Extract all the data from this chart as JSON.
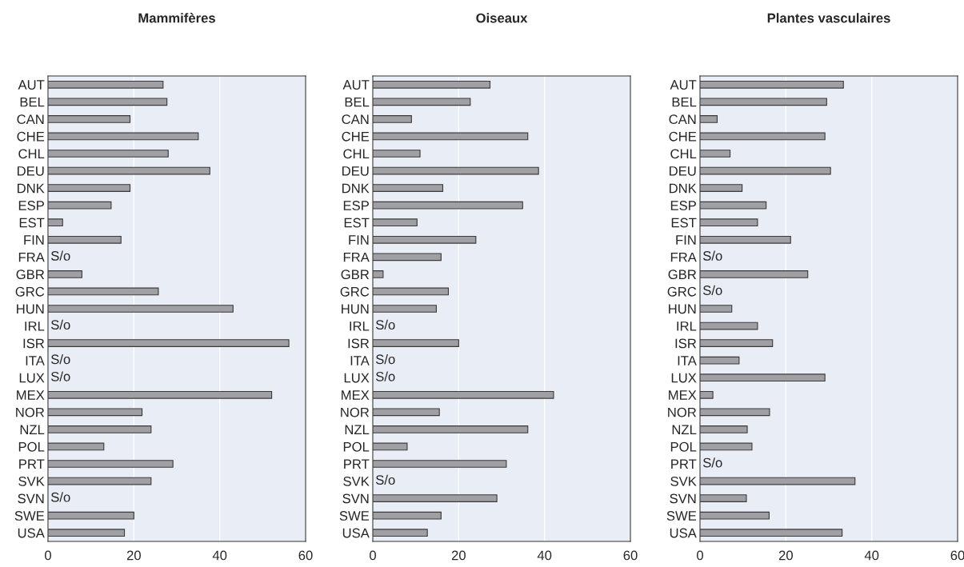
{
  "chart_data": [
    {
      "type": "bar",
      "orientation": "horizontal",
      "title": "Mammifères",
      "categories": [
        "AUT",
        "BEL",
        "CAN",
        "CHE",
        "CHL",
        "DEU",
        "DNK",
        "ESP",
        "EST",
        "FIN",
        "FRA",
        "GBR",
        "GRC",
        "HUN",
        "IRL",
        "ISR",
        "ITA",
        "LUX",
        "MEX",
        "NOR",
        "NZL",
        "POL",
        "PRT",
        "SVK",
        "SVN",
        "SWE",
        "USA"
      ],
      "values": [
        26.8,
        27.7,
        19.1,
        35.0,
        28.0,
        37.7,
        19.1,
        14.7,
        3.4,
        17.0,
        null,
        7.9,
        25.7,
        43.1,
        null,
        56.1,
        null,
        null,
        52.1,
        21.9,
        24.0,
        13.0,
        29.1,
        24.0,
        null,
        20.0,
        17.8
      ],
      "value_labels": [
        null,
        null,
        null,
        null,
        null,
        null,
        null,
        null,
        null,
        null,
        "S/o",
        null,
        null,
        null,
        "S/o",
        null,
        "S/o",
        "S/o",
        null,
        null,
        null,
        null,
        null,
        null,
        "S/o",
        null,
        null
      ],
      "color": "#a0a0a4",
      "xlim": [
        0,
        60
      ],
      "xticks": [
        0,
        20,
        40,
        60
      ],
      "grid": "x"
    },
    {
      "type": "bar",
      "orientation": "horizontal",
      "title": "Oiseaux",
      "categories": [
        "AUT",
        "BEL",
        "CAN",
        "CHE",
        "CHL",
        "DEU",
        "DNK",
        "ESP",
        "EST",
        "FIN",
        "FRA",
        "GBR",
        "GRC",
        "HUN",
        "IRL",
        "ISR",
        "ITA",
        "LUX",
        "MEX",
        "NOR",
        "NZL",
        "POL",
        "PRT",
        "SVK",
        "SVN",
        "SWE",
        "USA"
      ],
      "values": [
        27.3,
        22.7,
        9.0,
        36.1,
        11.0,
        38.6,
        16.3,
        34.9,
        10.3,
        24.0,
        15.9,
        2.4,
        17.6,
        14.8,
        null,
        20.0,
        null,
        null,
        42.1,
        15.5,
        36.1,
        8.0,
        31.1,
        null,
        28.9,
        15.9,
        12.7
      ],
      "value_labels": [
        null,
        null,
        null,
        null,
        null,
        null,
        null,
        null,
        null,
        null,
        null,
        null,
        null,
        null,
        "S/o",
        null,
        "S/o",
        "S/o",
        null,
        null,
        null,
        null,
        null,
        "S/o",
        null,
        null,
        null
      ],
      "color": "#a0a0a4",
      "xlim": [
        0,
        60
      ],
      "xticks": [
        0,
        20,
        40,
        60
      ],
      "grid": "x"
    },
    {
      "type": "bar",
      "orientation": "horizontal",
      "title": "Plantes vasculaires",
      "categories": [
        "AUT",
        "BEL",
        "CAN",
        "CHE",
        "CHL",
        "DEU",
        "DNK",
        "ESP",
        "EST",
        "FIN",
        "FRA",
        "GBR",
        "GRC",
        "HUN",
        "IRL",
        "ISR",
        "ITA",
        "LUX",
        "MEX",
        "NOR",
        "NZL",
        "POL",
        "PRT",
        "SVK",
        "SVN",
        "SWE",
        "USA"
      ],
      "values": [
        33.4,
        29.5,
        4.0,
        29.1,
        7.0,
        30.4,
        9.8,
        15.4,
        13.4,
        21.1,
        null,
        25.1,
        null,
        7.4,
        13.4,
        16.9,
        9.1,
        29.1,
        3.0,
        16.2,
        11.0,
        12.1,
        null,
        36.1,
        10.8,
        16.1,
        33.1
      ],
      "value_labels": [
        null,
        null,
        null,
        null,
        null,
        null,
        null,
        null,
        null,
        null,
        "S/o",
        null,
        "S/o",
        null,
        null,
        null,
        null,
        null,
        null,
        null,
        null,
        null,
        "S/o",
        null,
        null,
        null,
        null
      ],
      "color": "#a0a0a4",
      "xlim": [
        0,
        60
      ],
      "xticks": [
        0,
        20,
        40,
        60
      ],
      "grid": "x"
    }
  ]
}
